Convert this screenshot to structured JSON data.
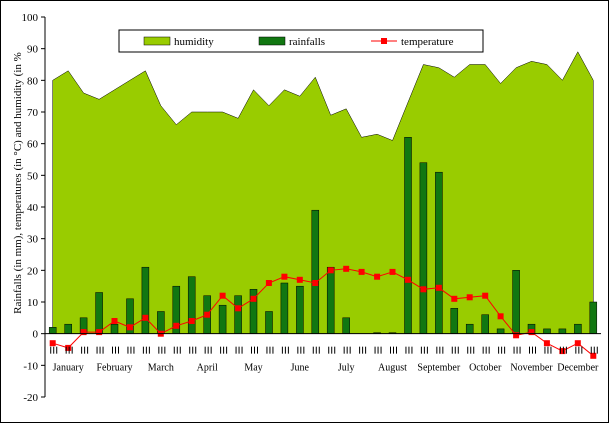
{
  "chart_data": {
    "type": "combo",
    "ylabel": "Rainfalls (in mm), temperatures (in °C) and humidity (in %",
    "ylim": [
      -20,
      100
    ],
    "yticks": [
      -20,
      -10,
      0,
      10,
      20,
      30,
      40,
      50,
      60,
      70,
      80,
      90,
      100
    ],
    "months": [
      "January",
      "February",
      "March",
      "April",
      "May",
      "June",
      "July",
      "August",
      "September",
      "October",
      "November",
      "December"
    ],
    "periods_per_month": 3,
    "legend": {
      "placement": "top",
      "entries": [
        "humidity",
        "rainfalls",
        "temperature"
      ]
    },
    "series": [
      {
        "name": "humidity",
        "kind": "area",
        "color": "#99cc00",
        "values": [
          80,
          83,
          76,
          74,
          77,
          80,
          83,
          72,
          66,
          70,
          70,
          70,
          68,
          77,
          72,
          77,
          75,
          81,
          69,
          71,
          62,
          63,
          61,
          73,
          85,
          84,
          81,
          85,
          85,
          79,
          84,
          86,
          85,
          80,
          89,
          80
        ]
      },
      {
        "name": "rainfalls",
        "kind": "bar",
        "color": "#117711",
        "values": [
          2,
          3,
          5,
          13,
          3,
          11,
          21,
          7,
          15,
          18,
          12,
          9,
          12,
          14,
          7,
          16,
          15,
          39,
          21,
          5,
          0,
          0.3,
          0.3,
          62,
          54,
          51,
          8,
          3,
          6,
          1.5,
          20,
          3,
          1.5,
          1.5,
          3,
          10
        ]
      },
      {
        "name": "temperature",
        "kind": "line",
        "color": "#ff0000",
        "values": [
          -3,
          -4.5,
          0.5,
          0.5,
          4,
          2,
          5,
          0,
          2.5,
          4,
          6,
          12,
          8,
          11,
          16,
          18,
          17,
          16,
          20,
          20.5,
          19.5,
          18,
          19.5,
          17,
          14,
          14.5,
          11,
          11.5,
          12,
          5.5,
          -0.5,
          0.5,
          -3,
          -5.5,
          -3,
          -7
        ]
      }
    ]
  }
}
